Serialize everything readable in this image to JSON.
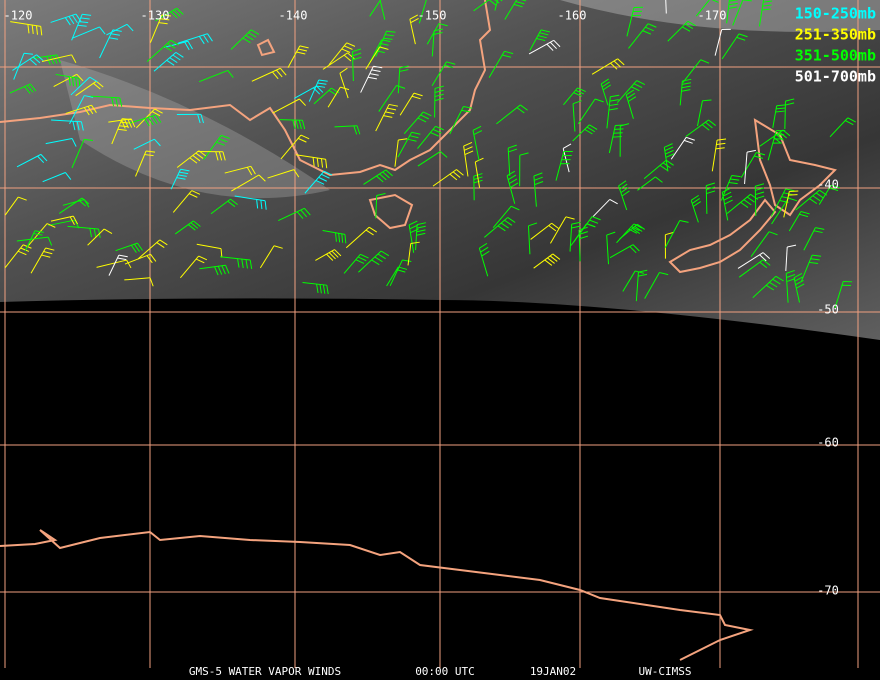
{
  "map": {
    "longitude_labels": [
      "-120",
      "-130",
      "-140",
      "-150",
      "-160",
      "-170"
    ],
    "latitude_labels": [
      "-40",
      "-50",
      "-60",
      "-70"
    ],
    "legend": [
      {
        "label": "150-250mb",
        "color": "#00ffff"
      },
      {
        "label": "251-350mb",
        "color": "#ffff00"
      },
      {
        "label": "351-500mb",
        "color": "#00ff00"
      },
      {
        "label": "501-700mb",
        "color": "#ffffff"
      }
    ],
    "footer": [
      "GMS-5 WATER VAPOR WINDS",
      "00:00 UTC",
      "19JAN02",
      "UW-CIMSS"
    ]
  }
}
